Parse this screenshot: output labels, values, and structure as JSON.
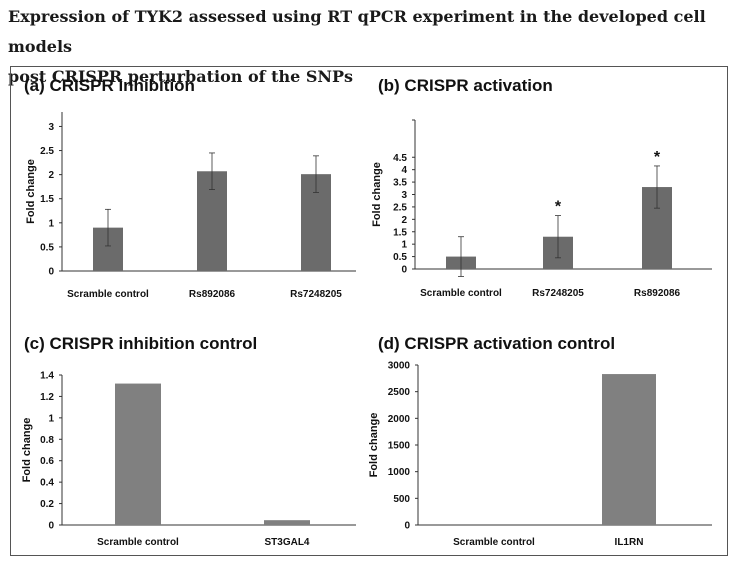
{
  "figure": {
    "title": "Expression of TYK2 assessed using RT qPCR experiment in the developed cell models post CRISPR perturbation of the SNPs",
    "title_line1": "Expression of TYK2 assessed using RT qPCR experiment in the developed cell models",
    "title_line2": "post CRISPR perturbation of the SNPs"
  },
  "colors": {
    "bar": "#6b6b6b",
    "bar_light": "#808080",
    "axis": "#333333",
    "text": "#111111"
  },
  "chart_data": [
    {
      "id": "a",
      "type": "bar",
      "title": "(a) CRISPR inhibition",
      "ylabel": "Fold change",
      "xlabel": "",
      "ylim": [
        0,
        3.3
      ],
      "yticks": [
        "0",
        "0.5",
        "1",
        "1.5",
        "2",
        "2.5",
        "3"
      ],
      "ytick_values": [
        0,
        0.5,
        1,
        1.5,
        2,
        2.5,
        3
      ],
      "categories": [
        "Scramble control",
        "Rs892086",
        "Rs7248205"
      ],
      "values": [
        0.9,
        2.07,
        2.01
      ],
      "errors": [
        0.38,
        0.38,
        0.38
      ],
      "annotations": [
        "",
        "",
        ""
      ]
    },
    {
      "id": "b",
      "type": "bar",
      "title": "(b) CRISPR activation",
      "ylabel": "Fold change",
      "xlabel": "",
      "ylim": [
        0,
        6
      ],
      "yticks": [
        "0",
        "0.5",
        "1",
        "1.5",
        "2",
        "2.5",
        "3",
        "3.5",
        "4",
        "4.5"
      ],
      "ytick_values": [
        0,
        0.5,
        1,
        1.5,
        2,
        2.5,
        3,
        3.5,
        4,
        4.5
      ],
      "categories": [
        "Scramble control",
        "Rs7248205",
        "Rs892086"
      ],
      "values": [
        0.5,
        1.3,
        3.3
      ],
      "errors": [
        0.8,
        0.85,
        0.85
      ],
      "annotations": [
        "",
        "*",
        "*"
      ]
    },
    {
      "id": "c",
      "type": "bar",
      "title": "(c) CRISPR inhibition control",
      "ylabel": "Fold change",
      "xlabel": "",
      "ylim": [
        0,
        1.4
      ],
      "yticks": [
        "0",
        "0.2",
        "0.4",
        "0.6",
        "0.8",
        "1",
        "1.2",
        "1.4"
      ],
      "ytick_values": [
        0,
        0.2,
        0.4,
        0.6,
        0.8,
        1.0,
        1.2,
        1.4
      ],
      "categories": [
        "Scramble control",
        "ST3GAL4"
      ],
      "values": [
        1.32,
        0.045
      ],
      "errors": [
        0,
        0
      ],
      "annotations": [
        "",
        ""
      ]
    },
    {
      "id": "d",
      "type": "bar",
      "title": "(d) CRISPR activation control",
      "ylabel": "Fold change",
      "xlabel": "",
      "ylim": [
        0,
        3000
      ],
      "yticks": [
        "0",
        "500",
        "1000",
        "1500",
        "2000",
        "2500",
        "3000"
      ],
      "ytick_values": [
        0,
        500,
        1000,
        1500,
        2000,
        2500,
        3000
      ],
      "categories": [
        "Scramble control",
        "IL1RN"
      ],
      "values": [
        0,
        2830
      ],
      "errors": [
        0,
        0
      ],
      "annotations": [
        "",
        ""
      ]
    }
  ]
}
